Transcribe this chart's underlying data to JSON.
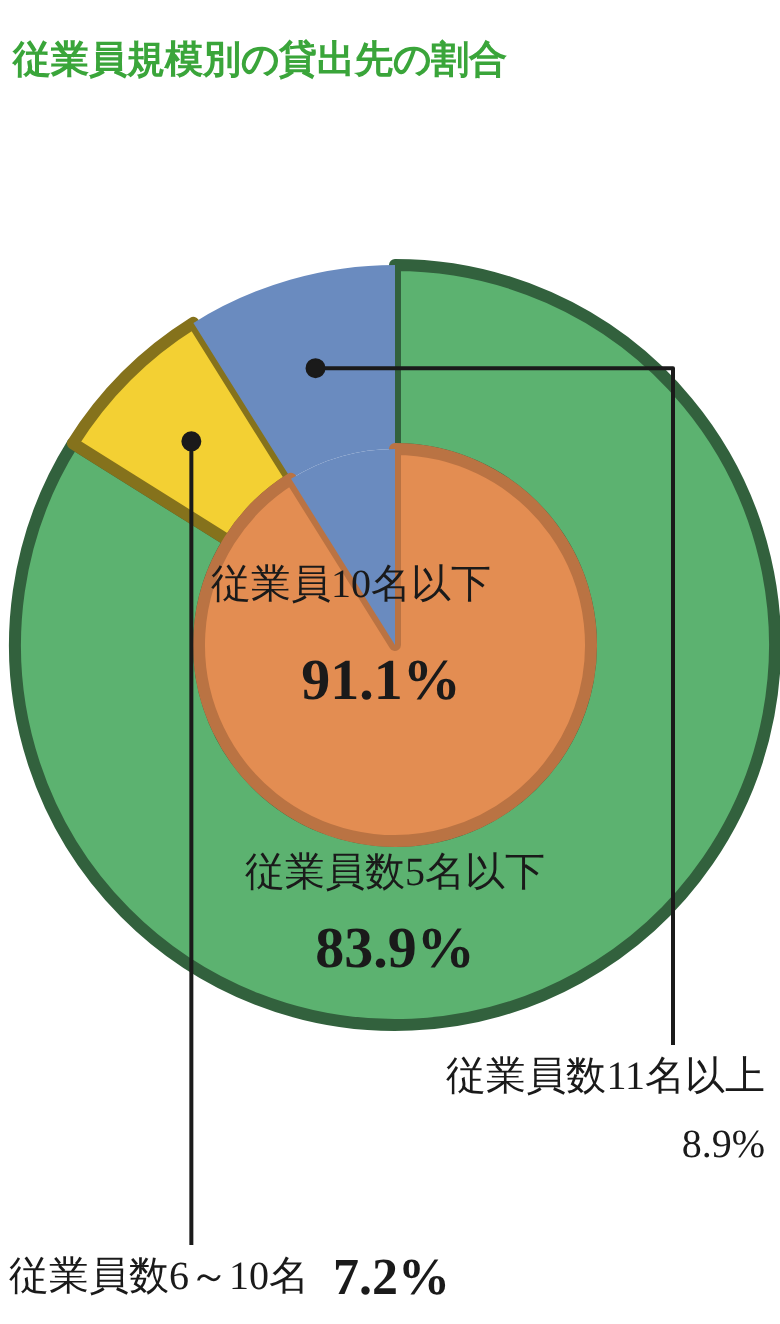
{
  "chart_data": {
    "type": "pie",
    "title": "従業員規模別の貸出先の割合",
    "categories": [
      "従業員数5名以下",
      "従業員数6～10名",
      "従業員数11名以上"
    ],
    "series": [
      {
        "type": "donut",
        "values": [
          83.9,
          7.2,
          8.9
        ],
        "colors": [
          "#5cb270",
          "#f3d033",
          "#6a8bbf"
        ],
        "value_labels": [
          "83.9%",
          "7.2%",
          "8.9%"
        ]
      },
      {
        "name": "従業員10名以下",
        "values": [
          91.1,
          null,
          8.9
        ],
        "colors": [
          "#e38d52",
          null,
          "#6a8bbf"
        ],
        "value_labels": [
          "91.1%",
          null,
          null
        ]
      }
    ]
  }
}
